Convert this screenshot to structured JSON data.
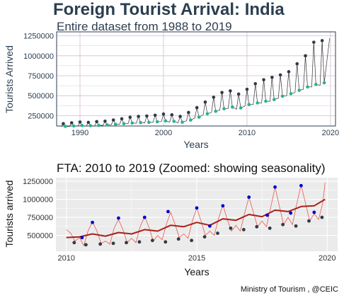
{
  "title": "Foreign Tourist Arrival: India",
  "caption": "Ministry of Tourism , @CEIC",
  "colors": {
    "title_text": "#2c3e50",
    "top_panel_grid": "#d3bcd0",
    "top_line": "#333333",
    "top_dark_points": "#2e3b47",
    "top_teal_points": "#26b38f",
    "bottom_panel_bg": "#ebebeb",
    "bottom_grid": "#ffffff",
    "bottom_raw_line": "#e8453c",
    "bottom_trend_line": "#a8201a",
    "bottom_peak_points": "#0000cc",
    "bottom_trough_points": "#2e3b47"
  },
  "chart_data": [
    {
      "type": "line",
      "subtitle": "Entire dataset from 1988 to 2019",
      "xlabel": "Years",
      "ylabel": "Tourists Arrived",
      "xlim": [
        1987.2,
        2020.6
      ],
      "ylim": [
        120000,
        1300000
      ],
      "x_ticks": [
        1990,
        2000,
        2010,
        2020
      ],
      "y_ticks": [
        250000,
        500000,
        750000,
        1000000,
        1250000
      ],
      "y_tick_labels": [
        "250000",
        "500000",
        "750000",
        "1000000",
        "1250000"
      ],
      "grid": true,
      "legend": "none",
      "series": [
        {
          "key": "monthly_high",
          "x": [
            1988,
            1989,
            1990,
            1991,
            1992,
            1993,
            1994,
            1995,
            1996,
            1997,
            1998,
            1999,
            2000,
            2001,
            2002,
            2003,
            2004,
            2005,
            2006,
            2007,
            2008,
            2009,
            2010,
            2011,
            2012,
            2013,
            2014,
            2015,
            2016,
            2017,
            2018,
            2019
          ],
          "values": [
            150000,
            160000,
            170000,
            165000,
            175000,
            180000,
            195000,
            210000,
            230000,
            240000,
            245000,
            255000,
            270000,
            260000,
            240000,
            290000,
            350000,
            420000,
            480000,
            540000,
            560000,
            520000,
            580000,
            650000,
            700000,
            730000,
            760000,
            800000,
            900000,
            1000000,
            1170000,
            1190000
          ]
        },
        {
          "key": "monthly_low",
          "x": [
            1988,
            1989,
            1990,
            1991,
            1992,
            1993,
            1994,
            1995,
            1996,
            1997,
            1998,
            1999,
            2000,
            2001,
            2002,
            2003,
            2004,
            2005,
            2006,
            2007,
            2008,
            2009,
            2010,
            2011,
            2012,
            2013,
            2014,
            2015,
            2016,
            2017,
            2018,
            2019
          ],
          "values": [
            110000,
            115000,
            120000,
            118000,
            122000,
            128000,
            135000,
            142000,
            150000,
            155000,
            158000,
            165000,
            175000,
            170000,
            160000,
            185000,
            220000,
            260000,
            290000,
            320000,
            340000,
            330000,
            370000,
            390000,
            410000,
            430000,
            470000,
            500000,
            540000,
            580000,
            610000,
            630000
          ]
        }
      ],
      "latest_point": {
        "x": 2019.9,
        "value": 1220000
      }
    },
    {
      "type": "line",
      "subtitle": "FTA: 2010 to 2019 (Zoomed: showing seasonality)",
      "xlabel": "Years",
      "ylabel": "Tourists arrived",
      "xlim": [
        2009.6,
        2020.4
      ],
      "ylim": [
        280000,
        1300000
      ],
      "x_ticks": [
        2010,
        2015,
        2020
      ],
      "y_ticks": [
        500000,
        750000,
        1000000,
        1250000
      ],
      "y_tick_labels": [
        "500000",
        "750000",
        "1000000",
        "1250000"
      ],
      "grid": true,
      "legend": "none",
      "series": [
        {
          "key": "monthly_raw",
          "x": [
            2010.0,
            2010.17,
            2010.33,
            2010.5,
            2010.67,
            2010.83,
            2011.0,
            2011.17,
            2011.33,
            2011.5,
            2011.67,
            2011.83,
            2012.0,
            2012.17,
            2012.33,
            2012.5,
            2012.67,
            2012.83,
            2013.0,
            2013.17,
            2013.33,
            2013.5,
            2013.67,
            2013.83,
            2014.0,
            2014.17,
            2014.33,
            2014.5,
            2014.67,
            2014.83,
            2015.0,
            2015.17,
            2015.33,
            2015.5,
            2015.67,
            2015.83,
            2016.0,
            2016.17,
            2016.33,
            2016.5,
            2016.67,
            2016.83,
            2017.0,
            2017.17,
            2017.33,
            2017.5,
            2017.67,
            2017.83,
            2018.0,
            2018.17,
            2018.33,
            2018.5,
            2018.67,
            2018.83,
            2019.0,
            2019.17,
            2019.33,
            2019.5,
            2019.67,
            2019.83,
            2019.92
          ],
          "values": [
            580000,
            530000,
            420000,
            470000,
            360000,
            560000,
            690000,
            560000,
            390000,
            420000,
            380000,
            600000,
            720000,
            580000,
            400000,
            460000,
            400000,
            620000,
            760000,
            610000,
            420000,
            500000,
            440000,
            650000,
            820000,
            650000,
            470000,
            520000,
            460000,
            700000,
            880000,
            690000,
            500000,
            560000,
            500000,
            730000,
            920000,
            720000,
            560000,
            640000,
            560000,
            800000,
            1030000,
            820000,
            620000,
            700000,
            620000,
            880000,
            1170000,
            900000,
            650000,
            750000,
            650000,
            930000,
            1200000,
            940000,
            700000,
            800000,
            720000,
            950000,
            1230000
          ]
        },
        {
          "key": "trend",
          "x": [
            2010.0,
            2010.5,
            2011.0,
            2011.5,
            2012.0,
            2012.5,
            2013.0,
            2013.5,
            2014.0,
            2014.5,
            2015.0,
            2015.5,
            2016.0,
            2016.5,
            2017.0,
            2017.5,
            2018.0,
            2018.5,
            2019.0,
            2019.5,
            2019.92
          ],
          "values": [
            470000,
            480000,
            520000,
            490000,
            540000,
            520000,
            580000,
            560000,
            640000,
            620000,
            680000,
            640000,
            730000,
            710000,
            790000,
            760000,
            850000,
            830000,
            900000,
            910000,
            1000000
          ]
        },
        {
          "key": "peaks",
          "x": [
            2010.6,
            2011.0,
            2012.0,
            2013.0,
            2013.9,
            2015.0,
            2015.5,
            2016.0,
            2017.0,
            2017.7,
            2018.0,
            2018.6,
            2019.0,
            2019.5
          ],
          "values": [
            470000,
            680000,
            740000,
            750000,
            830000,
            880000,
            630000,
            910000,
            1030000,
            780000,
            1170000,
            810000,
            1190000,
            820000
          ]
        },
        {
          "key": "troughs",
          "x": [
            2010.3,
            2010.75,
            2011.3,
            2011.8,
            2012.3,
            2012.8,
            2013.3,
            2013.8,
            2014.3,
            2014.8,
            2015.3,
            2015.8,
            2016.3,
            2016.8,
            2017.3,
            2017.8,
            2018.3,
            2018.8,
            2019.3,
            2019.8
          ],
          "values": [
            400000,
            370000,
            380000,
            390000,
            400000,
            410000,
            430000,
            410000,
            450000,
            430000,
            480000,
            530000,
            600000,
            580000,
            620000,
            600000,
            650000,
            630000,
            700000,
            750000
          ]
        }
      ]
    }
  ]
}
